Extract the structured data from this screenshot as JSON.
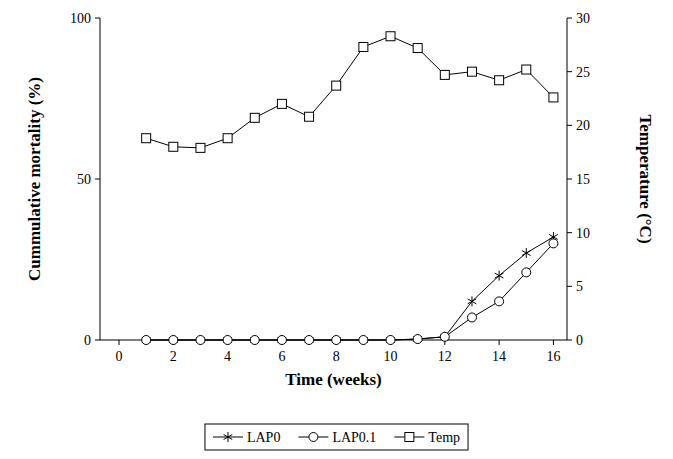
{
  "chart_data": {
    "type": "line",
    "x_label": "Time (weeks)",
    "y_label": "Cummulative mortality (%)",
    "y2_label": "Temperature  (°C)",
    "x": [
      1,
      2,
      3,
      4,
      5,
      6,
      7,
      8,
      9,
      10,
      11,
      12,
      13,
      14,
      15,
      16
    ],
    "xlim": [
      -0.7,
      16.5
    ],
    "xticks": [
      0,
      2,
      4,
      6,
      8,
      10,
      12,
      14,
      16
    ],
    "ylim": [
      0,
      100
    ],
    "yticks": [
      0,
      50,
      100
    ],
    "y2lim": [
      0,
      30
    ],
    "y2ticks": [
      0,
      5,
      10,
      15,
      20,
      25,
      30
    ],
    "legend": "bottom",
    "series": [
      {
        "name": "LAP0",
        "color": "#000000",
        "marker": "asterisk",
        "values": [
          0,
          0,
          0,
          0,
          0,
          0,
          0,
          0,
          0,
          0,
          0.3,
          1,
          12,
          20,
          27,
          32
        ]
      },
      {
        "name": "LAP0.1",
        "color": "#000000",
        "marker": "circle",
        "values": [
          0,
          0,
          0,
          0,
          0,
          0,
          0,
          0,
          0,
          0,
          0.3,
          1,
          7,
          12,
          21,
          30
        ]
      },
      {
        "name": "Temp",
        "color": "#000000",
        "marker": "square",
        "axis": "y2",
        "values": [
          18.8,
          18.0,
          17.9,
          18.8,
          20.7,
          22.0,
          20.8,
          23.7,
          27.3,
          28.3,
          27.2,
          24.7,
          25.0,
          24.2,
          25.2,
          22.6
        ]
      }
    ]
  }
}
